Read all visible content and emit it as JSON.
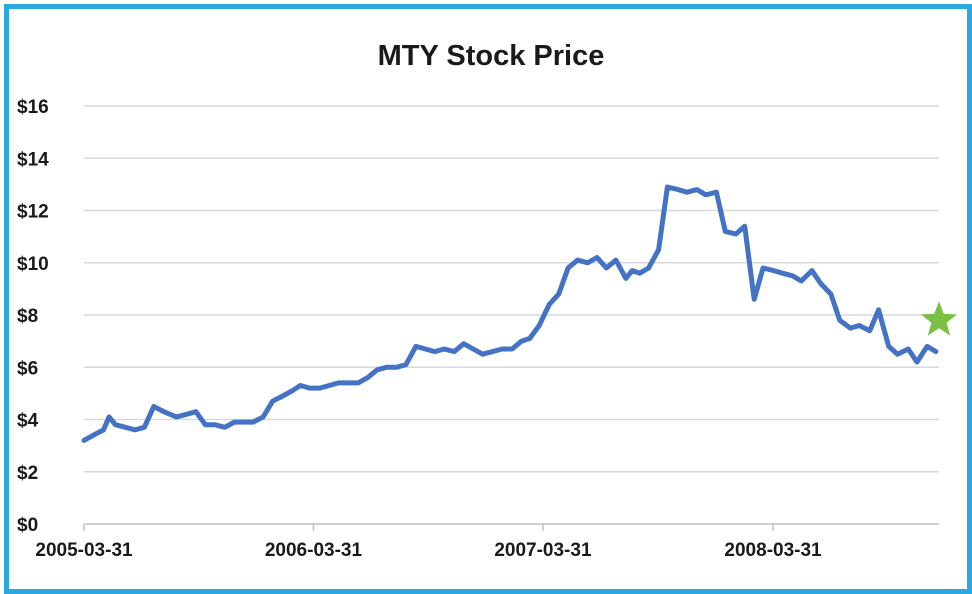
{
  "chart_data": {
    "type": "line",
    "title": "MTY Stock Price",
    "xlabel": "",
    "ylabel": "",
    "ylim": [
      0,
      16
    ],
    "y_ticks": [
      "$0",
      "$2",
      "$4",
      "$6",
      "$8",
      "$10",
      "$12",
      "$14",
      "$16"
    ],
    "x_ticks": [
      "2005-03-31",
      "2006-03-31",
      "2007-03-31",
      "2008-03-31"
    ],
    "xlim": [
      "2005-03-31",
      "2008-12-20"
    ],
    "grid": "horizontal",
    "legend": "none",
    "series": [
      {
        "color": "#4472c4",
        "x": [
          "2005-03-31",
          "2005-04-15",
          "2005-05-01",
          "2005-05-10",
          "2005-05-20",
          "2005-06-05",
          "2005-06-20",
          "2005-07-05",
          "2005-07-20",
          "2005-08-05",
          "2005-08-15",
          "2005-08-25",
          "2005-09-10",
          "2005-09-25",
          "2005-10-10",
          "2005-10-25",
          "2005-11-10",
          "2005-11-25",
          "2005-12-10",
          "2005-12-25",
          "2006-01-10",
          "2006-01-25",
          "2006-02-10",
          "2006-02-25",
          "2006-03-10",
          "2006-03-25",
          "2006-04-10",
          "2006-04-25",
          "2006-05-10",
          "2006-05-25",
          "2006-06-10",
          "2006-06-25",
          "2006-07-10",
          "2006-07-25",
          "2006-08-10",
          "2006-08-25",
          "2006-09-10",
          "2006-09-25",
          "2006-10-10",
          "2006-10-25",
          "2006-11-10",
          "2006-11-25",
          "2006-12-10",
          "2006-12-25",
          "2007-01-10",
          "2007-01-25",
          "2007-02-10",
          "2007-02-25",
          "2007-03-10",
          "2007-03-25",
          "2007-04-10",
          "2007-04-25",
          "2007-05-10",
          "2007-05-25",
          "2007-06-10",
          "2007-06-25",
          "2007-07-10",
          "2007-07-25",
          "2007-08-10",
          "2007-08-20",
          "2007-09-01",
          "2007-09-15",
          "2007-10-01",
          "2007-10-15",
          "2007-11-01",
          "2007-11-15",
          "2007-12-01",
          "2007-12-15",
          "2008-01-01",
          "2008-01-15",
          "2008-02-01",
          "2008-02-15",
          "2008-03-01",
          "2008-03-15",
          "2008-04-01",
          "2008-04-15",
          "2008-05-01",
          "2008-05-15",
          "2008-06-01",
          "2008-06-15",
          "2008-07-01",
          "2008-07-15",
          "2008-08-01",
          "2008-08-15",
          "2008-09-01",
          "2008-09-15",
          "2008-10-01",
          "2008-10-15",
          "2008-11-01",
          "2008-11-15",
          "2008-12-01",
          "2008-12-15"
        ],
        "values": [
          3.2,
          3.4,
          3.6,
          4.1,
          3.8,
          3.7,
          3.6,
          3.7,
          4.5,
          4.3,
          4.2,
          4.1,
          4.2,
          4.3,
          3.8,
          3.8,
          3.7,
          3.9,
          3.9,
          3.9,
          4.1,
          4.7,
          4.9,
          5.1,
          5.3,
          5.2,
          5.2,
          5.3,
          5.4,
          5.4,
          5.4,
          5.6,
          5.9,
          6.0,
          6.0,
          6.1,
          6.8,
          6.7,
          6.6,
          6.7,
          6.6,
          6.9,
          6.7,
          6.5,
          6.6,
          6.7,
          6.7,
          7.0,
          7.1,
          7.6,
          8.4,
          8.8,
          9.8,
          10.1,
          10.0,
          10.2,
          9.8,
          10.1,
          9.4,
          9.7,
          9.6,
          9.8,
          10.5,
          12.9,
          12.8,
          12.7,
          12.8,
          12.6,
          12.7,
          11.2,
          11.1,
          11.4,
          8.6,
          9.8,
          9.7,
          9.6,
          9.5,
          9.3,
          9.7,
          9.2,
          8.8,
          7.8,
          7.5,
          7.6,
          7.4,
          8.2,
          6.8,
          6.5,
          6.7,
          6.2,
          6.8,
          6.6
        ]
      }
    ],
    "annotations": [
      {
        "type": "star",
        "color": "#7ac143",
        "x": "2008-12-25",
        "y": 7.8
      }
    ]
  }
}
